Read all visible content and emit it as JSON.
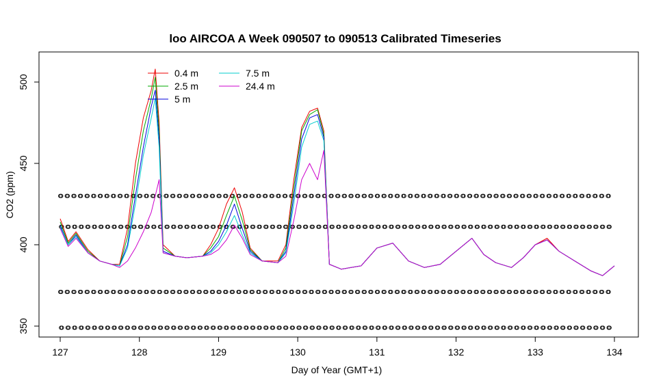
{
  "chart_data": {
    "type": "line",
    "title": "loo AIRCOA A  Week 090507 to 090513  Calibrated Timeseries",
    "xlabel": "Day of Year (GMT+1)",
    "ylabel": "CO2 (ppm)",
    "xlim": [
      127,
      134
    ],
    "ylim": [
      350,
      520
    ],
    "xticks": [
      127,
      128,
      129,
      130,
      131,
      132,
      133,
      134
    ],
    "yticks": [
      350,
      400,
      450,
      500
    ],
    "grid": false,
    "legend_position": "top-left",
    "x": [
      127.0,
      127.1,
      127.2,
      127.35,
      127.5,
      127.65,
      127.75,
      127.85,
      127.95,
      128.05,
      128.15,
      128.2,
      128.25,
      128.3,
      128.45,
      128.6,
      128.8,
      128.9,
      129.0,
      129.1,
      129.2,
      129.3,
      129.4,
      129.55,
      129.75,
      129.85,
      129.95,
      130.05,
      130.15,
      130.25,
      130.33,
      130.4,
      130.55,
      130.8,
      131.0,
      131.2,
      131.4,
      131.6,
      131.8,
      132.0,
      132.2,
      132.35,
      132.5,
      132.7,
      132.85,
      133.0,
      133.15,
      133.3,
      133.5,
      133.7,
      133.85,
      134.0
    ],
    "series": [
      {
        "name": "0.4 m",
        "color": "#ee0000",
        "values": [
          416,
          402,
          408,
          397,
          390,
          388,
          388,
          410,
          450,
          478,
          495,
          508,
          475,
          400,
          393,
          392,
          393,
          400,
          410,
          425,
          435,
          420,
          398,
          390,
          390,
          400,
          440,
          472,
          482,
          484,
          470,
          388,
          385,
          387,
          398,
          401,
          390,
          386,
          388,
          396,
          404,
          394,
          389,
          386,
          392,
          400,
          404,
          396,
          390,
          384,
          381,
          387
        ]
      },
      {
        "name": "2.5 m",
        "color": "#00aa00",
        "values": [
          414,
          401,
          407,
          396,
          390,
          388,
          387,
          405,
          440,
          470,
          490,
          503,
          470,
          398,
          393,
          392,
          393,
          398,
          405,
          418,
          430,
          415,
          397,
          390,
          389,
          398,
          435,
          470,
          480,
          483,
          468,
          388,
          385,
          387,
          398,
          401,
          390,
          386,
          388,
          396,
          404,
          394,
          389,
          386,
          392,
          400,
          403,
          396,
          390,
          384,
          381,
          387
        ]
      },
      {
        "name": "5 m",
        "color": "#0000dd",
        "values": [
          412,
          400,
          406,
          395,
          390,
          388,
          387,
          400,
          430,
          460,
          485,
          495,
          465,
          396,
          393,
          392,
          393,
          396,
          402,
          412,
          425,
          410,
          396,
          390,
          389,
          396,
          430,
          465,
          478,
          480,
          466,
          388,
          385,
          387,
          398,
          401,
          390,
          386,
          388,
          396,
          404,
          394,
          389,
          386,
          392,
          400,
          403,
          396,
          390,
          384,
          381,
          387
        ]
      },
      {
        "name": "7.5 m",
        "color": "#00cccc",
        "values": [
          411,
          400,
          405,
          395,
          390,
          388,
          387,
          398,
          425,
          455,
          478,
          490,
          460,
          395,
          393,
          392,
          393,
          395,
          400,
          408,
          418,
          406,
          395,
          390,
          389,
          395,
          425,
          460,
          474,
          476,
          464,
          388,
          385,
          387,
          398,
          401,
          390,
          386,
          388,
          396,
          404,
          394,
          389,
          386,
          392,
          400,
          403,
          396,
          390,
          384,
          381,
          387
        ]
      },
      {
        "name": "24.4 m",
        "color": "#cc00cc",
        "values": [
          410,
          399,
          404,
          395,
          390,
          388,
          386,
          390,
          398,
          408,
          420,
          430,
          440,
          395,
          393,
          392,
          393,
          394,
          397,
          403,
          412,
          404,
          394,
          390,
          389,
          393,
          415,
          440,
          450,
          440,
          458,
          388,
          385,
          387,
          398,
          401,
          390,
          386,
          388,
          396,
          404,
          394,
          389,
          386,
          392,
          400,
          403,
          396,
          390,
          384,
          381,
          387
        ]
      }
    ],
    "marker_series": [
      {
        "name": "",
        "y": 430
      },
      {
        "name": "",
        "y": 411
      },
      {
        "name": "",
        "y": 371
      },
      {
        "name": "",
        "y": 349
      }
    ],
    "legend": {
      "columns": [
        [
          "0.4 m",
          "2.5 m",
          "5 m"
        ],
        [
          "7.5 m",
          "24.4 m"
        ]
      ]
    }
  }
}
